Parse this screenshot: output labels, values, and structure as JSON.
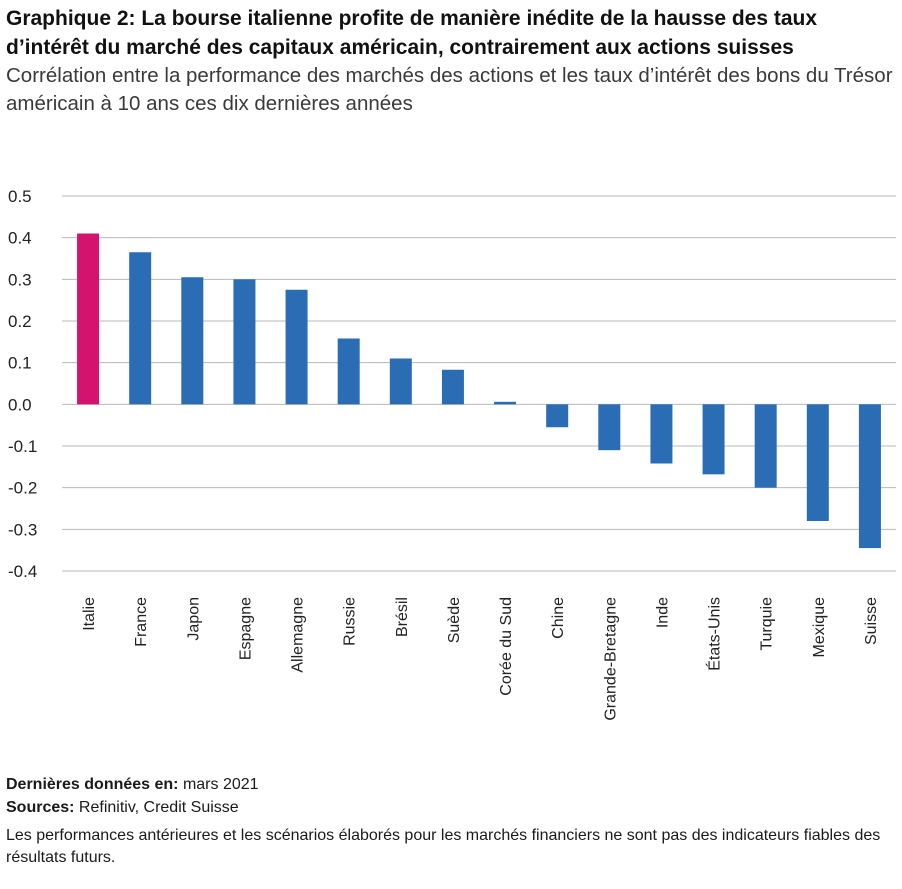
{
  "header": {
    "title": "Graphique 2: La bourse italienne profite de manière inédite de la hausse des taux d’intérêt du marché des capitaux américain, contrairement aux actions suisses",
    "subtitle": "Corrélation entre la performance des marchés des actions et les taux d’intérêt des bons du Trésor américain à 10 ans ces dix dernières années"
  },
  "footer": {
    "date_label": "Dernières données en:",
    "date_value": " mars 2021",
    "sources_label": "Sources:",
    "sources_value": " Refinitiv, Credit Suisse",
    "disclaimer": "Les performances antérieures et les scénarios élaborés pour les marchés financiers ne sont pas des indicateurs fiables des résultats futurs."
  },
  "colors": {
    "highlight": "#d4136f",
    "bar": "#2a6db5",
    "grid": "#b8b8b8"
  },
  "chart_data": {
    "type": "bar",
    "title": "",
    "xlabel": "",
    "ylabel": "",
    "ylim": [
      -0.4,
      0.5
    ],
    "yticks": [
      0.5,
      0.4,
      0.3,
      0.2,
      0.1,
      0.0,
      -0.1,
      -0.2,
      -0.3,
      -0.4
    ],
    "ytick_labels": [
      "0.5",
      "0.4",
      "0.3",
      "0.2",
      "0.1",
      "0.0",
      "-0.1",
      "-0.2",
      "-0.3",
      "-0.4"
    ],
    "grid": true,
    "categories": [
      "Italie",
      "France",
      "Japon",
      "Espagne",
      "Allemagne",
      "Russie",
      "Brésil",
      "Suède",
      "Corée du Sud",
      "Chine",
      "Grande-Bretagne",
      "Inde",
      "États-Unis",
      "Turquie",
      "Mexique",
      "Suisse"
    ],
    "values": [
      0.41,
      0.365,
      0.305,
      0.3,
      0.275,
      0.158,
      0.11,
      0.083,
      0.006,
      -0.055,
      -0.11,
      -0.142,
      -0.168,
      -0.2,
      -0.28,
      -0.345
    ],
    "highlight": [
      "Italie"
    ]
  }
}
